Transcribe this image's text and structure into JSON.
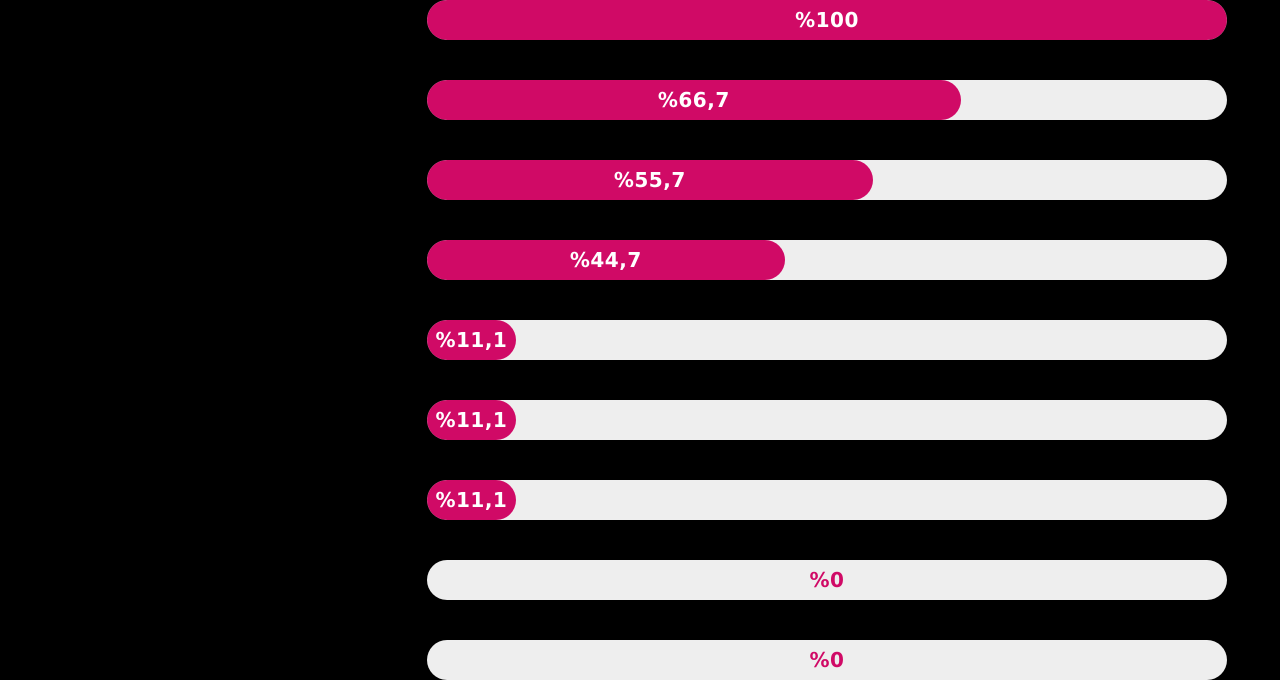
{
  "chart_data": {
    "type": "bar",
    "orientation": "horizontal",
    "title": "",
    "xlabel": "",
    "ylabel": "",
    "xlim": [
      0,
      100
    ],
    "grid": false,
    "values": [
      100,
      66.7,
      55.7,
      44.7,
      11.1,
      11.1,
      11.1,
      0,
      0
    ],
    "labels": [
      "%100",
      "%66,7",
      "%55,7",
      "%44,7",
      "%11,1",
      "%11,1",
      "%11,1",
      "%0",
      "%0"
    ],
    "colors": {
      "fill": "#d00a66",
      "track": "#eeeeee",
      "label_on_fill": "#ffffff",
      "label_on_track": "#d00a66",
      "background": "#000000"
    }
  }
}
